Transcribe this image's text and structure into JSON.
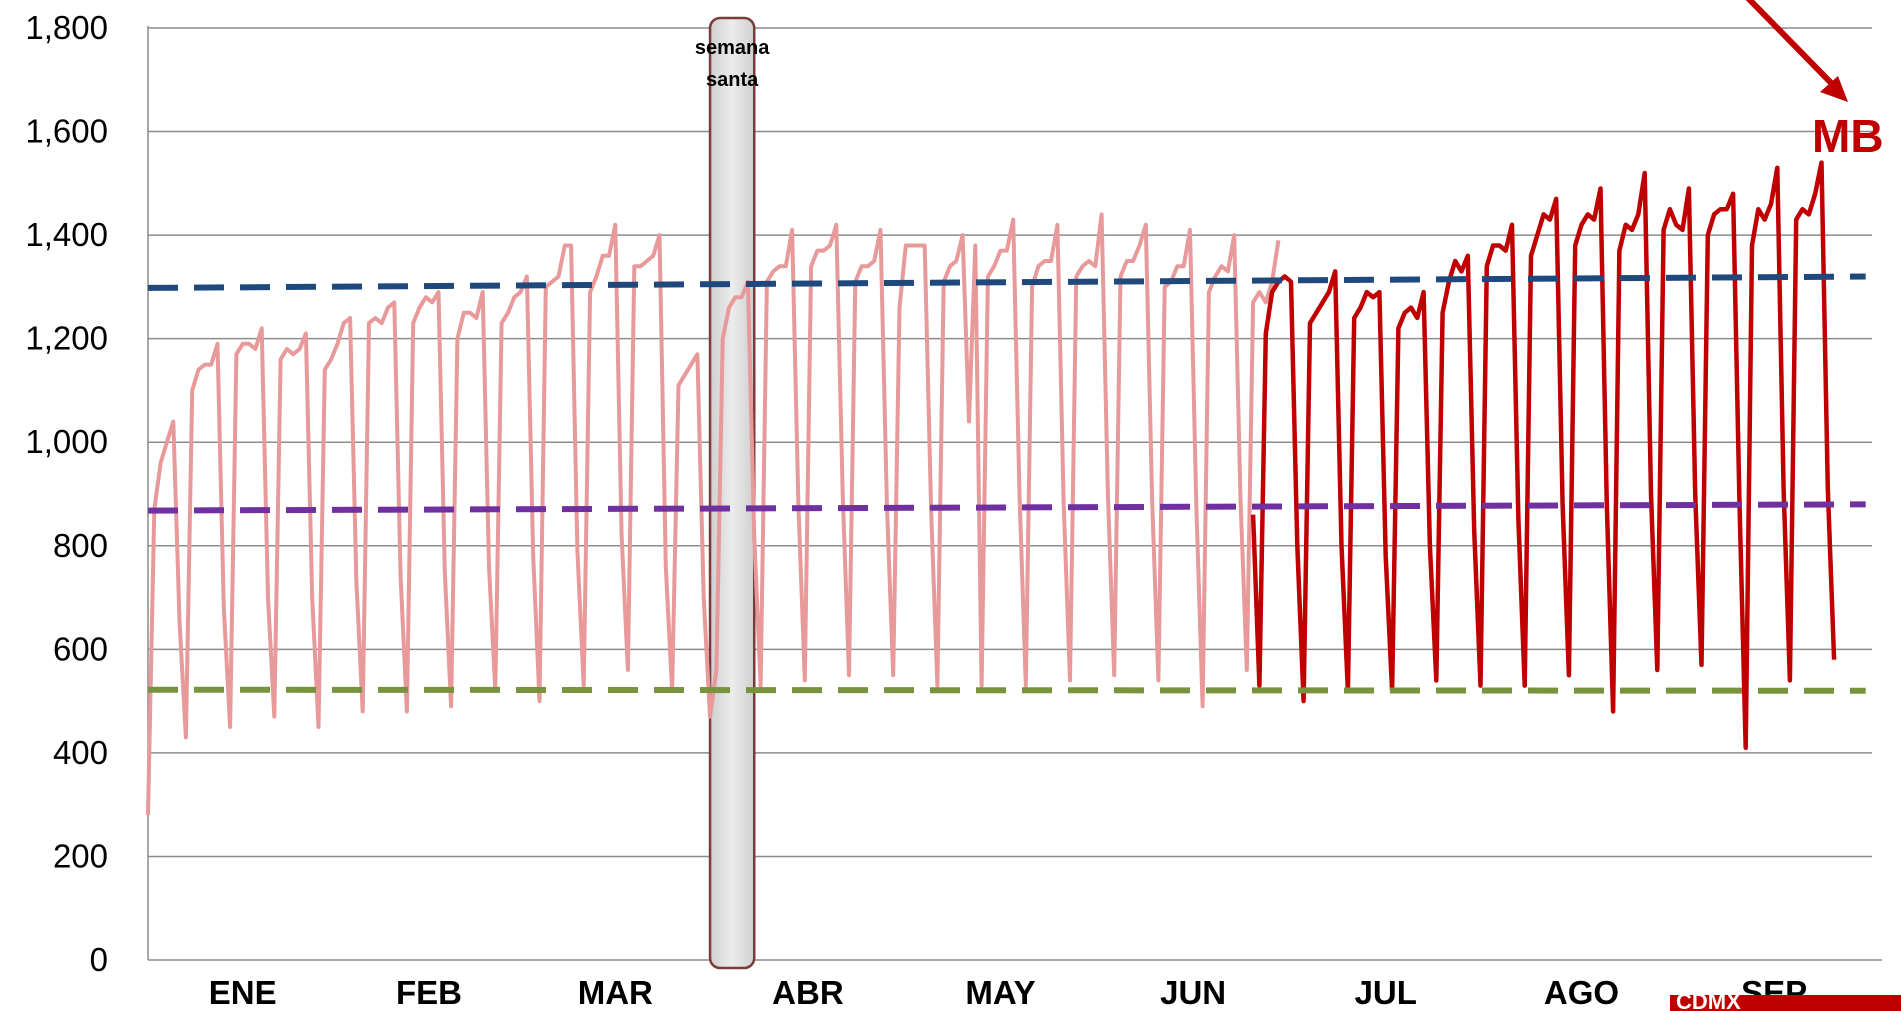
{
  "chart_data": {
    "type": "line",
    "title": "",
    "xlabel": "",
    "ylabel": "",
    "ylim": [
      0,
      1800
    ],
    "y_ticks": [
      0,
      200,
      400,
      600,
      800,
      1000,
      1200,
      1400,
      1600,
      1800
    ],
    "y_tick_labels": [
      "0",
      "200",
      "400",
      "600",
      "800",
      "1,000",
      "1,200",
      "1,400",
      "1,600",
      "1,800"
    ],
    "grid": "horizontal",
    "legend": "none",
    "months": [
      "ENE",
      "FEB",
      "MAR",
      "ABR",
      "MAY",
      "JUN",
      "JUL",
      "AGO",
      "SEP"
    ],
    "days_per_month": [
      31,
      28,
      31,
      30,
      31,
      30,
      31,
      31,
      30
    ],
    "first_weekday_index": 6,
    "annotation_band": {
      "label_line1": "semana",
      "label_line2": "santa",
      "start_day": 90,
      "end_day": 97
    },
    "logo_text": "MB",
    "watermark_text": "CDMX",
    "series": [
      {
        "id": "historic",
        "color": "#e8999a",
        "start_day": 1,
        "values": [
          280,
          870,
          960,
          1000,
          1040,
          650,
          430,
          1100,
          1140,
          1150,
          1150,
          1190,
          680,
          450,
          1170,
          1190,
          1190,
          1180,
          1220,
          700,
          470,
          1160,
          1180,
          1170,
          1180,
          1210,
          700,
          450,
          1140,
          1160,
          1190,
          1230,
          1240,
          730,
          480,
          1230,
          1240,
          1230,
          1260,
          1270,
          740,
          480,
          1230,
          1260,
          1280,
          1270,
          1290,
          750,
          490,
          1200,
          1250,
          1250,
          1240,
          1290,
          760,
          520,
          1230,
          1250,
          1280,
          1290,
          1320,
          780,
          500,
          1300,
          1310,
          1320,
          1380,
          1380,
          790,
          530,
          1290,
          1320,
          1360,
          1360,
          1420,
          820,
          560,
          1340,
          1340,
          1350,
          1360,
          1400,
          760,
          520,
          1110,
          1130,
          1150,
          1170,
          700,
          470,
          560,
          1200,
          1260,
          1280,
          1280,
          1310,
          820,
          530,
          1310,
          1330,
          1340,
          1340,
          1410,
          880,
          540,
          1340,
          1370,
          1370,
          1380,
          1420,
          900,
          550,
          1310,
          1340,
          1340,
          1350,
          1410,
          880,
          550,
          1260,
          1380,
          1380,
          1380,
          1380,
          870,
          530,
          1310,
          1340,
          1350,
          1400,
          1040,
          1380,
          530,
          1320,
          1340,
          1370,
          1370,
          1430,
          900,
          530,
          1300,
          1340,
          1350,
          1350,
          1420,
          880,
          540,
          1320,
          1340,
          1350,
          1340,
          1440,
          900,
          550,
          1320,
          1350,
          1350,
          1380,
          1420,
          890,
          540,
          1300,
          1310,
          1340,
          1340,
          1410,
          880,
          490,
          1290,
          1320,
          1340,
          1330,
          1400,
          890,
          560,
          1270,
          1290,
          1270,
          1310,
          1390
        ]
      },
      {
        "id": "current",
        "color": "#c00000",
        "start_day": 176,
        "values": [
          860,
          530,
          1210,
          1290,
          1310,
          1320,
          1310,
          800,
          500,
          1230,
          1250,
          1270,
          1290,
          1330,
          800,
          520,
          1240,
          1260,
          1290,
          1280,
          1290,
          780,
          520,
          1220,
          1250,
          1260,
          1240,
          1290,
          800,
          540,
          1250,
          1310,
          1350,
          1330,
          1360,
          830,
          530,
          1340,
          1380,
          1380,
          1370,
          1420,
          850,
          530,
          1360,
          1400,
          1440,
          1430,
          1470,
          880,
          550,
          1380,
          1420,
          1440,
          1430,
          1490,
          880,
          480,
          1370,
          1420,
          1410,
          1440,
          1520,
          900,
          560,
          1410,
          1450,
          1420,
          1410,
          1490,
          900,
          570,
          1400,
          1440,
          1450,
          1450,
          1480,
          890,
          410,
          1380,
          1450,
          1430,
          1460,
          1530,
          910,
          540,
          1430,
          1450,
          1440,
          1480,
          1540,
          910,
          580
        ]
      },
      {
        "id": "avg-weekday",
        "color": "#1f497d",
        "style": "dashed",
        "start_day": 1,
        "end_day": 273,
        "values": [
          1298,
          1320
        ]
      },
      {
        "id": "avg-all",
        "color": "#7030a0",
        "style": "dashed",
        "start_day": 1,
        "end_day": 273,
        "values": [
          868,
          880
        ]
      },
      {
        "id": "avg-sunday",
        "color": "#77933c",
        "style": "dashed",
        "start_day": 1,
        "end_day": 273,
        "values": [
          522,
          520
        ]
      }
    ]
  }
}
